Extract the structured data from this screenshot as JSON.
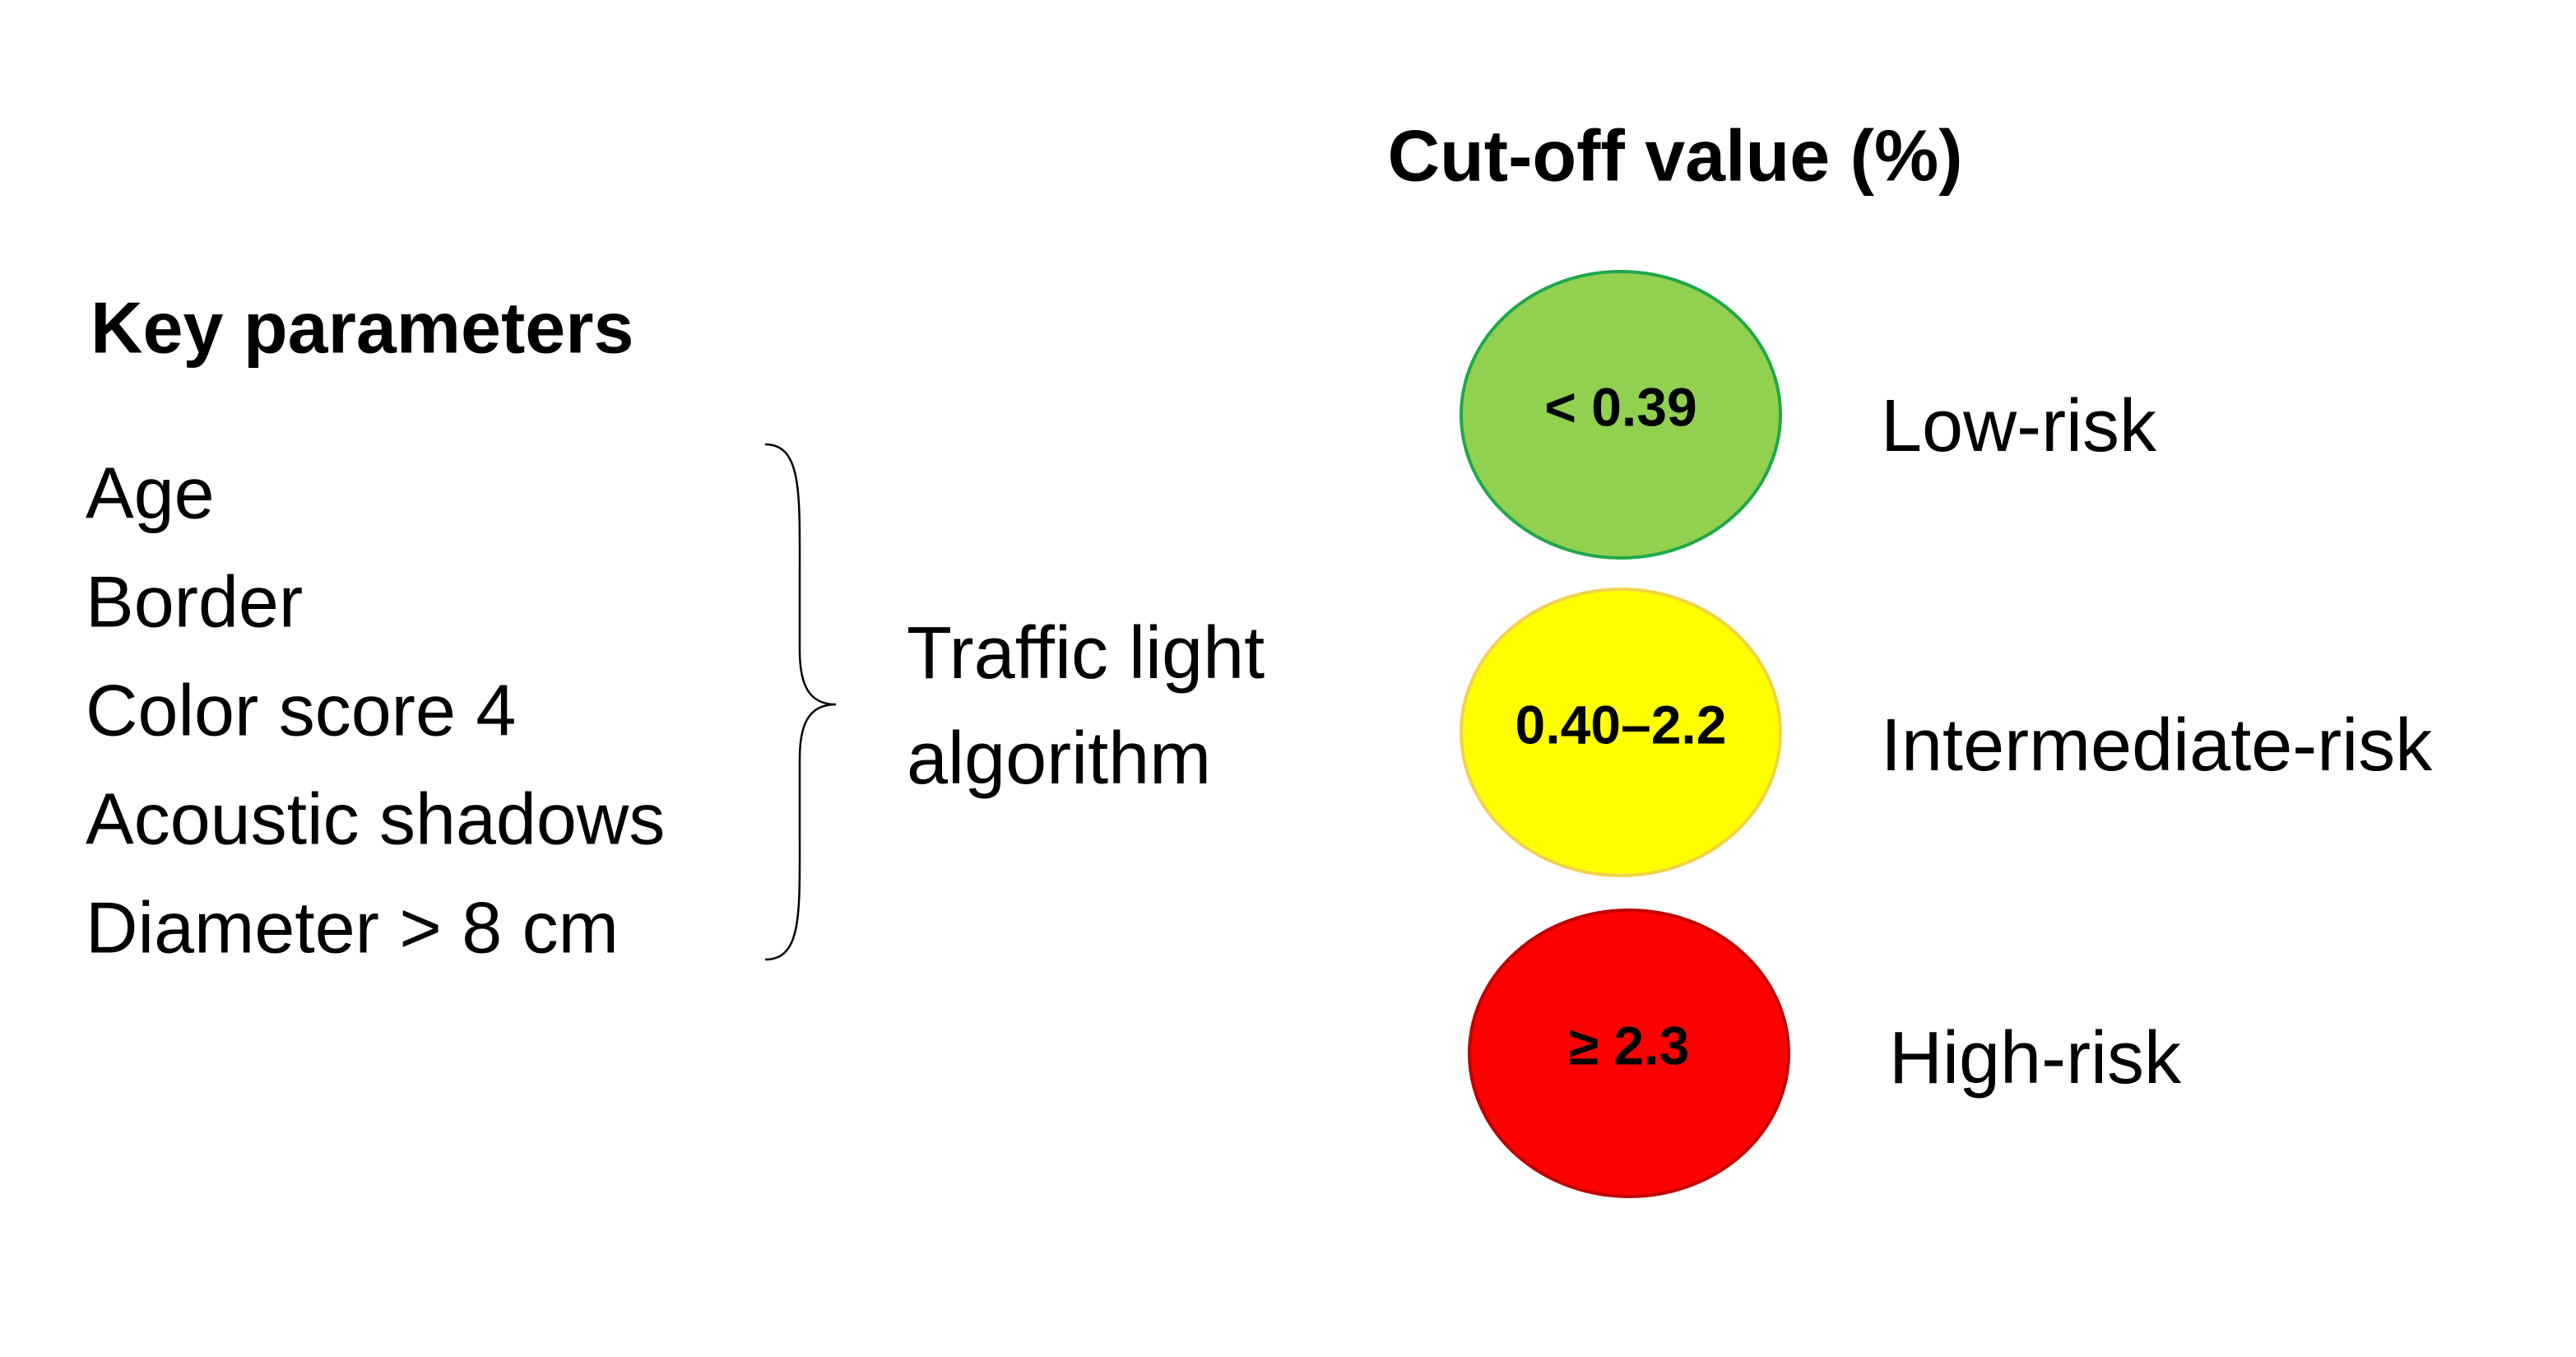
{
  "key_parameters": {
    "title": "Key parameters",
    "items": [
      "Age",
      "Border",
      "Color score 4",
      "Acoustic shadows",
      "Diameter > 8 cm"
    ]
  },
  "algorithm": {
    "lines": [
      "Traffic light",
      "algorithm"
    ]
  },
  "cutoff": {
    "title": "Cut-off value (%)",
    "levels": [
      {
        "value_label": "< 0.39",
        "risk": "Low-risk",
        "fill": "#92d050",
        "stroke": "#1fa84a"
      },
      {
        "value_label": "0.40–2.2",
        "risk": "Intermediate-risk",
        "fill": "#ffff00",
        "stroke": "#f2d24a"
      },
      {
        "value_label": "≥ 2.3",
        "risk": "High-risk",
        "fill": "#ff0000",
        "stroke": "#c00000"
      }
    ]
  }
}
